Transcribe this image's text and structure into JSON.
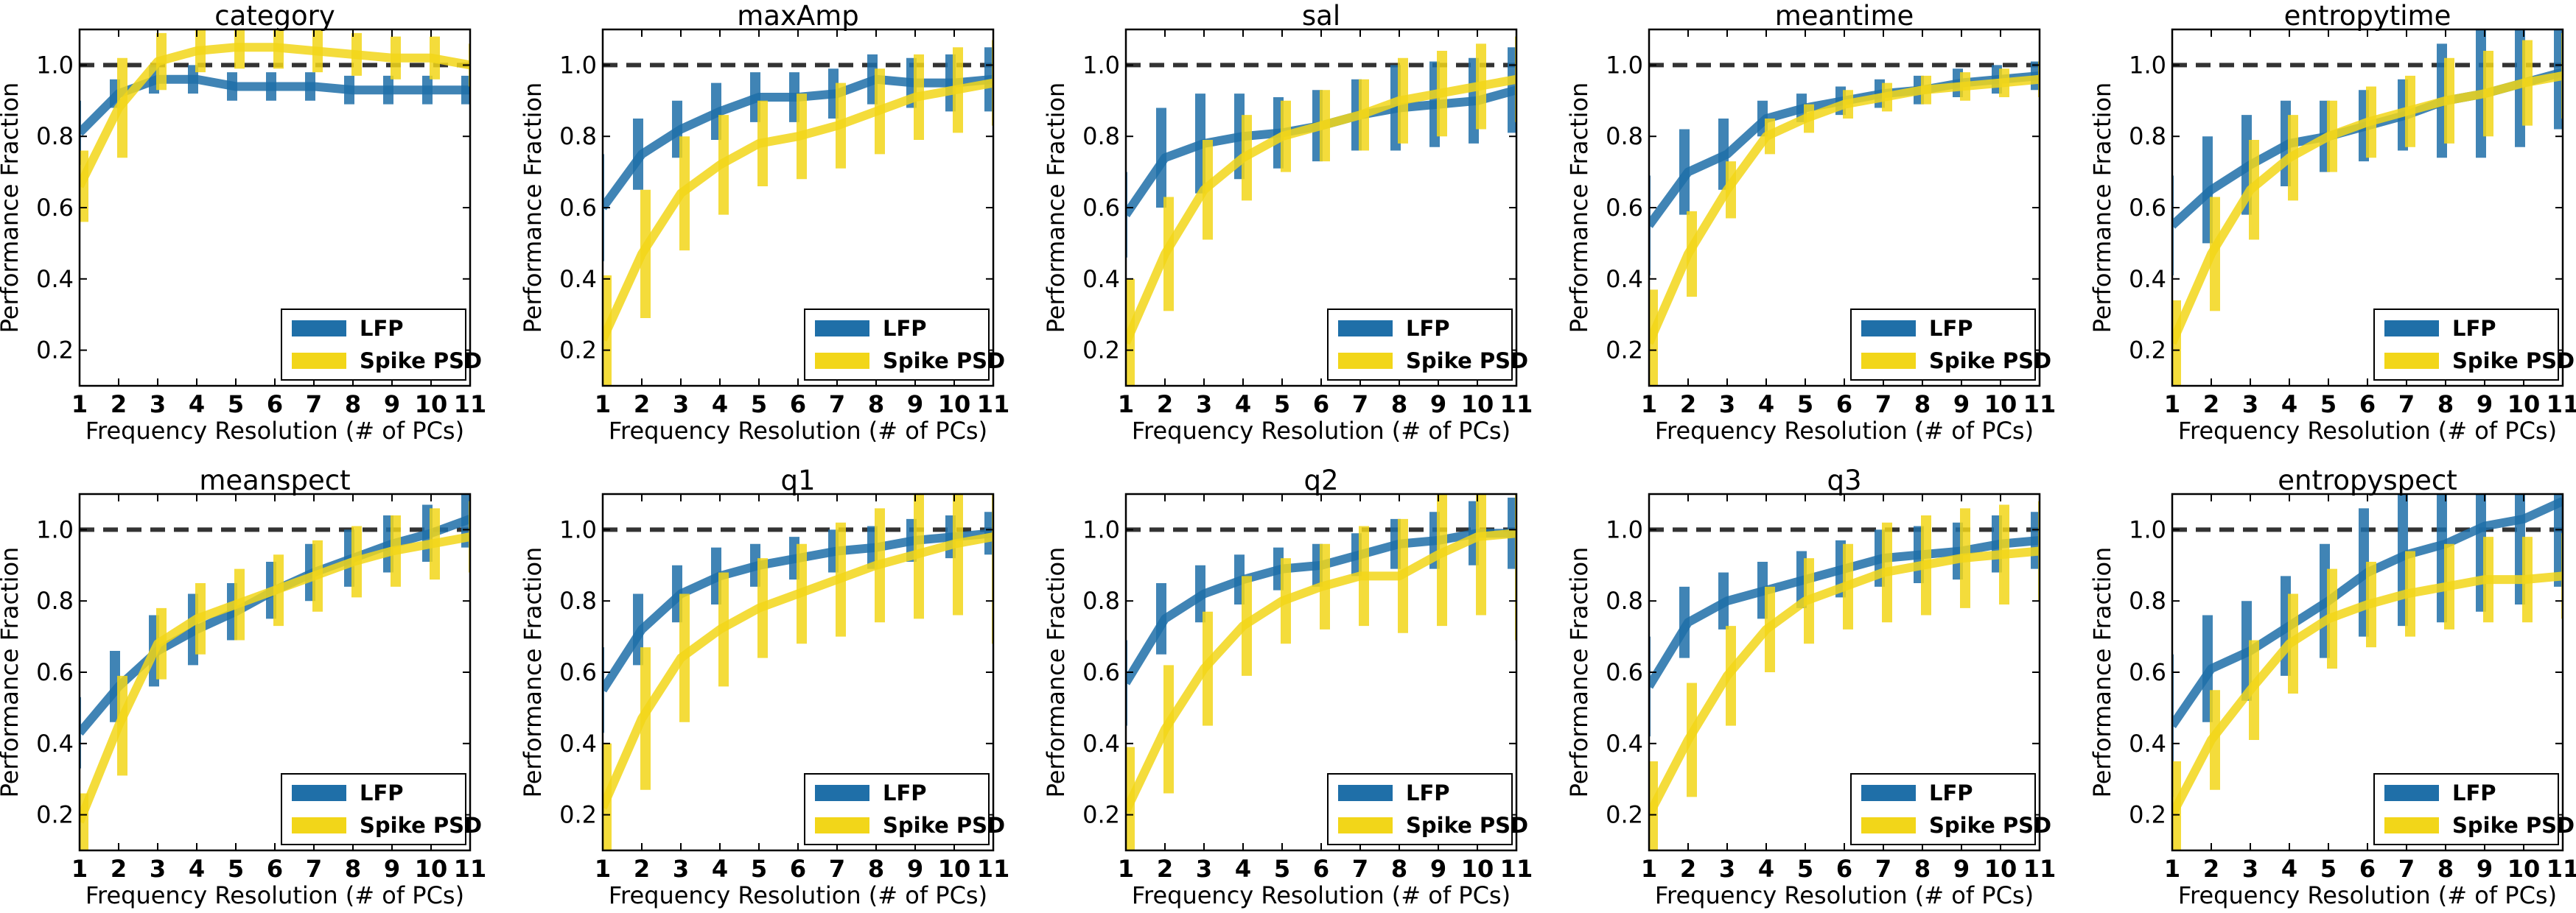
{
  "colors": {
    "lfp": "#1f6fa8",
    "spike": "#f2d619",
    "reference": "#333333"
  },
  "shared": {
    "xlabel": "Frequency Resolution (# of PCs)",
    "ylabel": "Performance Fraction",
    "x": [
      1,
      2,
      3,
      4,
      5,
      6,
      7,
      8,
      9,
      10,
      11
    ],
    "xlim": [
      1,
      11
    ],
    "ylim": [
      0.1,
      1.1
    ],
    "yticks": [
      0.2,
      0.4,
      0.6,
      0.8,
      1.0
    ],
    "reference_line": 1.0,
    "legend": [
      "LFP",
      "Spike PSD"
    ],
    "legend_position": "lower-right"
  },
  "chart_data": [
    {
      "type": "line",
      "title": "category",
      "series": [
        {
          "name": "LFP",
          "values": [
            0.81,
            0.92,
            0.96,
            0.96,
            0.94,
            0.94,
            0.94,
            0.93,
            0.93,
            0.93,
            0.93
          ],
          "err": [
            0.09,
            0.04,
            0.04,
            0.04,
            0.04,
            0.04,
            0.04,
            0.04,
            0.04,
            0.04,
            0.04
          ]
        },
        {
          "name": "Spike PSD",
          "values": [
            0.66,
            0.88,
            1.01,
            1.04,
            1.05,
            1.05,
            1.04,
            1.03,
            1.02,
            1.02,
            1.0
          ],
          "err": [
            0.1,
            0.14,
            0.08,
            0.06,
            0.06,
            0.06,
            0.06,
            0.06,
            0.06,
            0.06,
            0.06
          ]
        }
      ]
    },
    {
      "type": "line",
      "title": "maxAmp",
      "series": [
        {
          "name": "LFP",
          "values": [
            0.6,
            0.75,
            0.82,
            0.87,
            0.91,
            0.91,
            0.92,
            0.96,
            0.95,
            0.95,
            0.96
          ],
          "err": [
            0.15,
            0.1,
            0.08,
            0.08,
            0.07,
            0.07,
            0.07,
            0.07,
            0.07,
            0.08,
            0.09
          ]
        },
        {
          "name": "Spike PSD",
          "values": [
            0.23,
            0.47,
            0.64,
            0.72,
            0.78,
            0.8,
            0.83,
            0.87,
            0.91,
            0.93,
            0.95
          ],
          "err": [
            0.18,
            0.18,
            0.16,
            0.14,
            0.12,
            0.12,
            0.12,
            0.12,
            0.12,
            0.12,
            0.12
          ]
        }
      ]
    },
    {
      "type": "line",
      "title": "sal",
      "series": [
        {
          "name": "LFP",
          "values": [
            0.58,
            0.74,
            0.78,
            0.8,
            0.81,
            0.83,
            0.86,
            0.88,
            0.89,
            0.9,
            0.93
          ],
          "err": [
            0.12,
            0.14,
            0.14,
            0.12,
            0.1,
            0.1,
            0.1,
            0.12,
            0.12,
            0.12,
            0.12
          ]
        },
        {
          "name": "Spike PSD",
          "values": [
            0.22,
            0.47,
            0.65,
            0.74,
            0.8,
            0.83,
            0.86,
            0.9,
            0.92,
            0.94,
            0.96
          ],
          "err": [
            0.18,
            0.16,
            0.14,
            0.12,
            0.1,
            0.1,
            0.1,
            0.12,
            0.12,
            0.12,
            0.12
          ]
        }
      ]
    },
    {
      "type": "line",
      "title": "meantime",
      "series": [
        {
          "name": "LFP",
          "values": [
            0.55,
            0.7,
            0.75,
            0.85,
            0.88,
            0.9,
            0.92,
            0.93,
            0.95,
            0.96,
            0.97
          ],
          "err": [
            0.14,
            0.12,
            0.1,
            0.05,
            0.04,
            0.04,
            0.04,
            0.04,
            0.04,
            0.04,
            0.04
          ]
        },
        {
          "name": "Spike PSD",
          "values": [
            0.22,
            0.47,
            0.65,
            0.8,
            0.85,
            0.89,
            0.91,
            0.93,
            0.94,
            0.95,
            0.96
          ],
          "err": [
            0.15,
            0.12,
            0.08,
            0.05,
            0.04,
            0.04,
            0.04,
            0.04,
            0.04,
            0.04,
            0.05
          ]
        }
      ]
    },
    {
      "type": "line",
      "title": "entropytime",
      "series": [
        {
          "name": "LFP",
          "values": [
            0.55,
            0.65,
            0.72,
            0.78,
            0.8,
            0.83,
            0.86,
            0.9,
            0.92,
            0.95,
            0.98
          ],
          "err": [
            0.14,
            0.15,
            0.14,
            0.12,
            0.1,
            0.1,
            0.1,
            0.16,
            0.18,
            0.18,
            0.16
          ]
        },
        {
          "name": "Spike PSD",
          "values": [
            0.22,
            0.47,
            0.65,
            0.74,
            0.8,
            0.84,
            0.87,
            0.9,
            0.92,
            0.95,
            0.97
          ],
          "err": [
            0.12,
            0.16,
            0.14,
            0.12,
            0.1,
            0.1,
            0.1,
            0.12,
            0.12,
            0.12,
            0.12
          ]
        }
      ]
    },
    {
      "type": "line",
      "title": "meanspect",
      "series": [
        {
          "name": "LFP",
          "values": [
            0.43,
            0.56,
            0.66,
            0.72,
            0.77,
            0.83,
            0.88,
            0.92,
            0.96,
            0.99,
            1.03
          ],
          "err": [
            0.1,
            0.1,
            0.1,
            0.1,
            0.08,
            0.08,
            0.08,
            0.08,
            0.08,
            0.08,
            0.08
          ]
        },
        {
          "name": "Spike PSD",
          "values": [
            0.18,
            0.45,
            0.68,
            0.75,
            0.79,
            0.83,
            0.87,
            0.91,
            0.94,
            0.96,
            0.98
          ],
          "err": [
            0.08,
            0.14,
            0.1,
            0.1,
            0.1,
            0.1,
            0.1,
            0.1,
            0.1,
            0.1,
            0.1
          ]
        }
      ]
    },
    {
      "type": "line",
      "title": "q1",
      "series": [
        {
          "name": "LFP",
          "values": [
            0.55,
            0.72,
            0.82,
            0.87,
            0.9,
            0.92,
            0.94,
            0.95,
            0.97,
            0.98,
            0.99
          ],
          "err": [
            0.12,
            0.1,
            0.08,
            0.08,
            0.06,
            0.06,
            0.06,
            0.06,
            0.06,
            0.06,
            0.06
          ]
        },
        {
          "name": "Spike PSD",
          "values": [
            0.22,
            0.47,
            0.64,
            0.72,
            0.78,
            0.82,
            0.86,
            0.9,
            0.93,
            0.96,
            0.98
          ],
          "err": [
            0.18,
            0.2,
            0.18,
            0.16,
            0.14,
            0.14,
            0.16,
            0.16,
            0.18,
            0.2,
            0.3
          ]
        }
      ]
    },
    {
      "type": "line",
      "title": "q2",
      "series": [
        {
          "name": "LFP",
          "values": [
            0.57,
            0.75,
            0.82,
            0.86,
            0.89,
            0.9,
            0.93,
            0.96,
            0.97,
            0.99,
            0.99
          ],
          "err": [
            0.12,
            0.1,
            0.08,
            0.07,
            0.06,
            0.06,
            0.06,
            0.07,
            0.08,
            0.09,
            0.1
          ]
        },
        {
          "name": "Spike PSD",
          "values": [
            0.21,
            0.44,
            0.61,
            0.73,
            0.8,
            0.84,
            0.87,
            0.87,
            0.93,
            0.98,
            0.99
          ],
          "err": [
            0.18,
            0.18,
            0.16,
            0.14,
            0.12,
            0.12,
            0.14,
            0.16,
            0.2,
            0.22,
            0.3
          ]
        }
      ]
    },
    {
      "type": "line",
      "title": "q3",
      "series": [
        {
          "name": "LFP",
          "values": [
            0.56,
            0.74,
            0.8,
            0.83,
            0.86,
            0.89,
            0.92,
            0.93,
            0.94,
            0.96,
            0.97
          ],
          "err": [
            0.14,
            0.1,
            0.08,
            0.08,
            0.08,
            0.08,
            0.08,
            0.08,
            0.08,
            0.08,
            0.08
          ]
        },
        {
          "name": "Spike PSD",
          "values": [
            0.2,
            0.41,
            0.59,
            0.72,
            0.8,
            0.84,
            0.88,
            0.9,
            0.92,
            0.93,
            0.94
          ],
          "err": [
            0.15,
            0.16,
            0.14,
            0.12,
            0.12,
            0.12,
            0.14,
            0.14,
            0.14,
            0.14,
            0.14
          ]
        }
      ]
    },
    {
      "type": "line",
      "title": "entropyspect",
      "series": [
        {
          "name": "LFP",
          "values": [
            0.45,
            0.61,
            0.66,
            0.73,
            0.8,
            0.88,
            0.93,
            0.96,
            1.01,
            1.03,
            1.08
          ],
          "err": [
            0.2,
            0.15,
            0.14,
            0.14,
            0.16,
            0.18,
            0.2,
            0.22,
            0.24,
            0.24,
            0.24
          ]
        },
        {
          "name": "Spike PSD",
          "values": [
            0.2,
            0.41,
            0.55,
            0.68,
            0.75,
            0.79,
            0.82,
            0.84,
            0.86,
            0.86,
            0.87
          ],
          "err": [
            0.15,
            0.14,
            0.14,
            0.14,
            0.14,
            0.12,
            0.12,
            0.12,
            0.12,
            0.12,
            0.12
          ]
        }
      ]
    }
  ]
}
